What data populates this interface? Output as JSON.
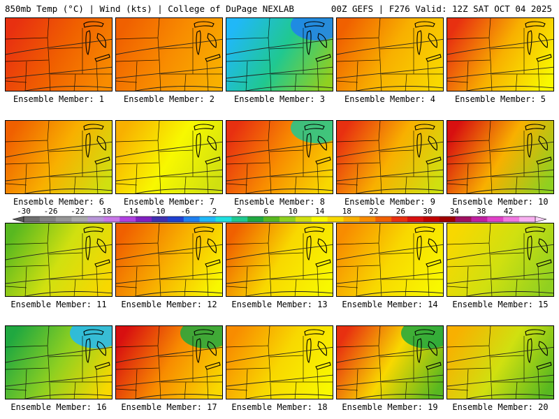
{
  "header": {
    "left": "850mb Temp (°C) | Wind (kts) | College of DuPage NEXLAB",
    "right": "00Z GEFS | F276 Valid: 12Z SAT OCT 04 2025"
  },
  "label_prefix": "Ensemble Member: ",
  "colorbar": {
    "ticks": [
      "-30",
      "-26",
      "-22",
      "-18",
      "-14",
      "-10",
      "-6",
      "-2",
      "2",
      "6",
      "10",
      "14",
      "18",
      "22",
      "26",
      "30",
      "34",
      "38",
      "42"
    ],
    "colors": [
      "#6e6e6e",
      "#828282",
      "#969696",
      "#aaaaaa",
      "#b896d8",
      "#c878e8",
      "#b040e0",
      "#8020c0",
      "#4030b0",
      "#2040d0",
      "#2080f0",
      "#20b8f8",
      "#20e0e0",
      "#20c890",
      "#20a840",
      "#58b820",
      "#90d020",
      "#d0e010",
      "#f8f800",
      "#f8d800",
      "#f8b000",
      "#f88c00",
      "#f06000",
      "#e83010",
      "#d81010",
      "#c00000",
      "#a00000",
      "#a01060",
      "#c020a0",
      "#e040c8",
      "#f078e0",
      "#f8b0f0"
    ]
  },
  "members": [
    {
      "number": "1",
      "colors": [
        "#e83010",
        "#f06000",
        "#f88c00"
      ],
      "cold": ""
    },
    {
      "number": "2",
      "colors": [
        "#f06000",
        "#f88c00",
        "#f8b000"
      ],
      "cold": ""
    },
    {
      "number": "3",
      "colors": [
        "#20b8f8",
        "#20c890",
        "#90d020"
      ],
      "cold": "#2080f0"
    },
    {
      "number": "4",
      "colors": [
        "#f06000",
        "#f8b000",
        "#f8d800"
      ],
      "cold": ""
    },
    {
      "number": "5",
      "colors": [
        "#e83010",
        "#f8b000",
        "#f8f800"
      ],
      "cold": ""
    },
    {
      "number": "6",
      "colors": [
        "#f06000",
        "#f8b000",
        "#d0e010"
      ],
      "cold": ""
    },
    {
      "number": "7",
      "colors": [
        "#f8b000",
        "#f8f800",
        "#d0e010"
      ],
      "cold": ""
    },
    {
      "number": "8",
      "colors": [
        "#e83010",
        "#f88c00",
        "#f8d800"
      ],
      "cold": "#20c890"
    },
    {
      "number": "9",
      "colors": [
        "#e83010",
        "#f8b000",
        "#d0e010"
      ],
      "cold": ""
    },
    {
      "number": "10",
      "colors": [
        "#d81010",
        "#f8b000",
        "#90d020"
      ],
      "cold": ""
    },
    {
      "number": "11",
      "colors": [
        "#58b820",
        "#d0e010",
        "#f8d800"
      ],
      "cold": ""
    },
    {
      "number": "12",
      "colors": [
        "#f06000",
        "#f8b000",
        "#f8f800"
      ],
      "cold": ""
    },
    {
      "number": "13",
      "colors": [
        "#f06000",
        "#f8d800",
        "#f8f800"
      ],
      "cold": ""
    },
    {
      "number": "14",
      "colors": [
        "#f88c00",
        "#f8d800",
        "#f8f800"
      ],
      "cold": ""
    },
    {
      "number": "15",
      "colors": [
        "#f8d800",
        "#d0e010",
        "#90d020"
      ],
      "cold": ""
    },
    {
      "number": "16",
      "colors": [
        "#20a840",
        "#90d020",
        "#f8d800"
      ],
      "cold": "#20b8f8"
    },
    {
      "number": "17",
      "colors": [
        "#d81010",
        "#f88c00",
        "#f8d800"
      ],
      "cold": "#20a840"
    },
    {
      "number": "18",
      "colors": [
        "#f88c00",
        "#f8d800",
        "#f8f800"
      ],
      "cold": ""
    },
    {
      "number": "19",
      "colors": [
        "#e83010",
        "#f8d800",
        "#58b820"
      ],
      "cold": "#20a840"
    },
    {
      "number": "20",
      "colors": [
        "#f8b000",
        "#d0e010",
        "#58b820"
      ],
      "cold": ""
    }
  ]
}
